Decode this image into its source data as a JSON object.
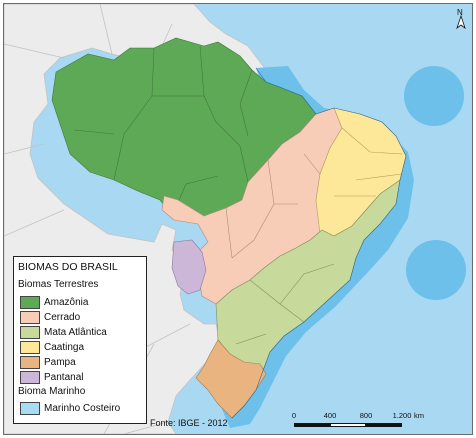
{
  "legend": {
    "title": "BIOMAS DO BRASIL",
    "terrestrial_heading": "Biomas Terrestres",
    "items": [
      {
        "label": "Amazônia",
        "color": "#5ea956"
      },
      {
        "label": "Cerrado",
        "color": "#f7cdb8"
      },
      {
        "label": "Mata Atlântica",
        "color": "#c7d99b"
      },
      {
        "label": "Caatinga",
        "color": "#fde89a"
      },
      {
        "label": "Pampa",
        "color": "#e9b47f"
      },
      {
        "label": "Pantanal",
        "color": "#cdb7d8"
      }
    ],
    "marine_heading": "Bioma Marinho",
    "marine_items": [
      {
        "label": "Marinho Costeiro",
        "color": "#a8dcf5"
      }
    ]
  },
  "source": "Fonte: IBGE - 2012",
  "scale": {
    "ticks": [
      "0",
      "400",
      "800",
      "1.200"
    ],
    "unit": "km"
  },
  "north": "N",
  "colors": {
    "ocean": "#a9d8f3",
    "coastal": "#6cc0ea",
    "neighbors": "#ececec",
    "borders": "#b9b9b9"
  }
}
